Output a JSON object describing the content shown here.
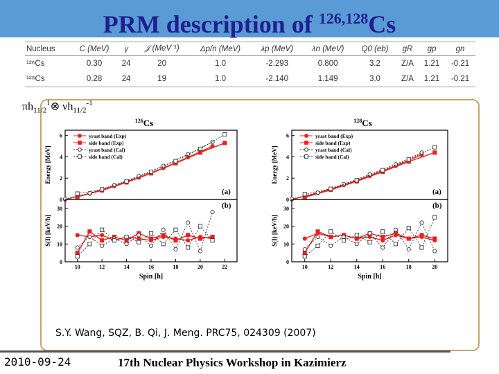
{
  "slide": {
    "title_main": "PRM description of ",
    "title_sup": "126,128",
    "title_tail": "Cs",
    "config_pi": "πh",
    "config_sub1": "11/2",
    "config_sup1": "1",
    "config_otimes": "⊗",
    "config_nu": "νh",
    "config_sub2": "11/2",
    "config_sup2": "-1",
    "citation": "S.Y. Wang, SQZ, B. Qi, J. Meng. PRC75, 024309 (2007)",
    "footer_date": "2010-09-24",
    "footer_event": "17th Nuclear Physics Workshop in Kazimierz",
    "accent_color": "#5b9bd5",
    "title_color": "#1f1f8f"
  },
  "table": {
    "headers": [
      "Nucleus",
      "C (MeV)",
      "γ",
      "𝒥 (MeV⁻¹)",
      "Δp/n (MeV)",
      "λp (MeV)",
      "λn (MeV)",
      "Q0 (eb)",
      "gR",
      "gp",
      "gn"
    ],
    "rows": [
      [
        "¹²⁶Cs",
        "0.30",
        "24",
        "20",
        "1.0",
        "-2.293",
        "0.800",
        "3.2",
        "Z/A",
        "1.21",
        "-0.21"
      ],
      [
        "¹²⁸Cs",
        "0.28",
        "24",
        "19",
        "1.0",
        "-2.140",
        "1.149",
        "3.0",
        "Z/A",
        "1.21",
        "-0.21"
      ]
    ]
  },
  "chart_data": [
    {
      "type": "line",
      "nucleus": "126Cs",
      "panel_top": {
        "label": "(a)",
        "ylabel": "Energy [MeV]",
        "ylim": [
          0,
          6.5
        ],
        "yticks": [
          0,
          2,
          4,
          6
        ],
        "legend": [
          "yrast band (Exp)",
          "side band (Exp)",
          "yrast band (Cal)",
          "side band (Cal)"
        ],
        "series": [
          {
            "name": "yrast band (Exp)",
            "x": [
              9,
              11,
              13,
              15,
              17,
              19,
              21
            ],
            "y": [
              0.0,
              0.55,
              1.25,
              2.05,
              2.95,
              3.95,
              5.0
            ]
          },
          {
            "name": "side band (Exp)",
            "x": [
              10,
              12,
              14,
              16,
              18,
              20,
              22
            ],
            "y": [
              0.25,
              0.85,
              1.6,
              2.45,
              3.4,
              4.4,
              5.3
            ]
          },
          {
            "name": "yrast band (Cal)",
            "x": [
              9,
              11,
              13,
              15,
              17,
              19,
              21
            ],
            "y": [
              0.05,
              0.6,
              1.35,
              2.2,
              3.15,
              4.25,
              5.4
            ]
          },
          {
            "name": "side band (Cal)",
            "x": [
              10,
              12,
              14,
              16,
              18,
              20,
              22
            ],
            "y": [
              0.55,
              0.95,
              1.7,
              2.6,
              3.6,
              4.75,
              6.1
            ]
          }
        ]
      },
      "panel_bottom": {
        "label": "(b)",
        "ylabel": "S(I) [keV/ħ]",
        "xlabel": "Spin [ħ]",
        "ylim": [
          0,
          35
        ],
        "yticks": [
          0,
          10,
          20,
          30
        ],
        "xticks": [
          10,
          12,
          14,
          16,
          18,
          20,
          22
        ],
        "series": [
          {
            "name": "yrast band (Exp)",
            "x": [
              10,
              11,
              12,
              13,
              14,
              15,
              16,
              17,
              18,
              19,
              20,
              21
            ],
            "y": [
              15,
              14,
              15,
              12,
              14,
              13,
              12,
              14,
              13,
              12,
              14,
              13
            ]
          },
          {
            "name": "side band (Exp)",
            "x": [
              10,
              11,
              12,
              13,
              14,
              15,
              16,
              17,
              18,
              19,
              20,
              21
            ],
            "y": [
              5,
              17,
              12,
              14,
              12,
              16,
              13,
              15,
              12,
              15,
              13,
              14
            ]
          },
          {
            "name": "yrast band (Cal)",
            "x": [
              10,
              11,
              12,
              13,
              14,
              15,
              16,
              17,
              18,
              19,
              20,
              21
            ],
            "y": [
              8,
              14,
              9,
              13,
              10,
              15,
              9,
              18,
              7,
              22,
              6,
              28
            ]
          },
          {
            "name": "side band (Cal)",
            "x": [
              10,
              11,
              12,
              13,
              14,
              15,
              16,
              17,
              18,
              19,
              20,
              21
            ],
            "y": [
              3,
              10,
              18,
              12,
              14,
              11,
              16,
              10,
              18,
              8,
              20,
              12
            ]
          }
        ]
      }
    },
    {
      "type": "line",
      "nucleus": "128Cs",
      "panel_top": {
        "label": "(a)",
        "ylabel": "Energy [MeV]",
        "ylim": [
          0,
          6.5
        ],
        "yticks": [
          0,
          2,
          4,
          6
        ],
        "legend": [
          "yrast band (Exp)",
          "side band (Exp)",
          "yrast band (Cal)",
          "side band (Cal)"
        ],
        "series": [
          {
            "name": "yrast band (Exp)",
            "x": [
              9,
              11,
              13,
              15,
              17,
              19
            ],
            "y": [
              0.0,
              0.6,
              1.35,
              2.2,
              3.15,
              4.2
            ]
          },
          {
            "name": "side band (Exp)",
            "x": [
              10,
              12,
              14,
              16,
              18,
              20
            ],
            "y": [
              0.2,
              0.9,
              1.7,
              2.6,
              3.55,
              4.4
            ]
          },
          {
            "name": "yrast band (Cal)",
            "x": [
              9,
              11,
              13,
              15,
              17,
              19
            ],
            "y": [
              0.05,
              0.65,
              1.45,
              2.35,
              3.3,
              4.4
            ]
          },
          {
            "name": "side band (Cal)",
            "x": [
              10,
              12,
              14,
              16,
              18,
              20
            ],
            "y": [
              0.5,
              1.0,
              1.8,
              2.75,
              3.75,
              4.9
            ]
          }
        ]
      },
      "panel_bottom": {
        "label": "(b)",
        "ylabel": "S(I) [keV/ħ]",
        "xlabel": "Spin [ħ]",
        "ylim": [
          0,
          35
        ],
        "yticks": [
          0,
          10,
          20,
          30
        ],
        "xticks": [
          10,
          12,
          14,
          16,
          18,
          20
        ],
        "series": [
          {
            "name": "yrast band (Exp)",
            "x": [
              10,
              11,
              12,
              13,
              14,
              15,
              16,
              17,
              18,
              19,
              20
            ],
            "y": [
              13,
              16,
              14,
              15,
              13,
              14,
              12,
              15,
              13,
              14,
              12
            ]
          },
          {
            "name": "side band (Exp)",
            "x": [
              10,
              11,
              12,
              13,
              14,
              15,
              16,
              17,
              18,
              19,
              20
            ],
            "y": [
              5,
              17,
              14,
              15,
              13,
              16,
              14,
              16,
              13,
              15,
              13
            ]
          },
          {
            "name": "yrast band (Cal)",
            "x": [
              10,
              11,
              12,
              13,
              14,
              15,
              16,
              17,
              18,
              19,
              20
            ],
            "y": [
              7,
              14,
              9,
              14,
              10,
              16,
              8,
              18,
              7,
              22,
              6
            ]
          },
          {
            "name": "side band (Cal)",
            "x": [
              10,
              11,
              12,
              13,
              14,
              15,
              16,
              17,
              18,
              19,
              20
            ],
            "y": [
              3,
              9,
              17,
              12,
              15,
              11,
              17,
              10,
              19,
              8,
              25
            ]
          }
        ]
      }
    }
  ]
}
